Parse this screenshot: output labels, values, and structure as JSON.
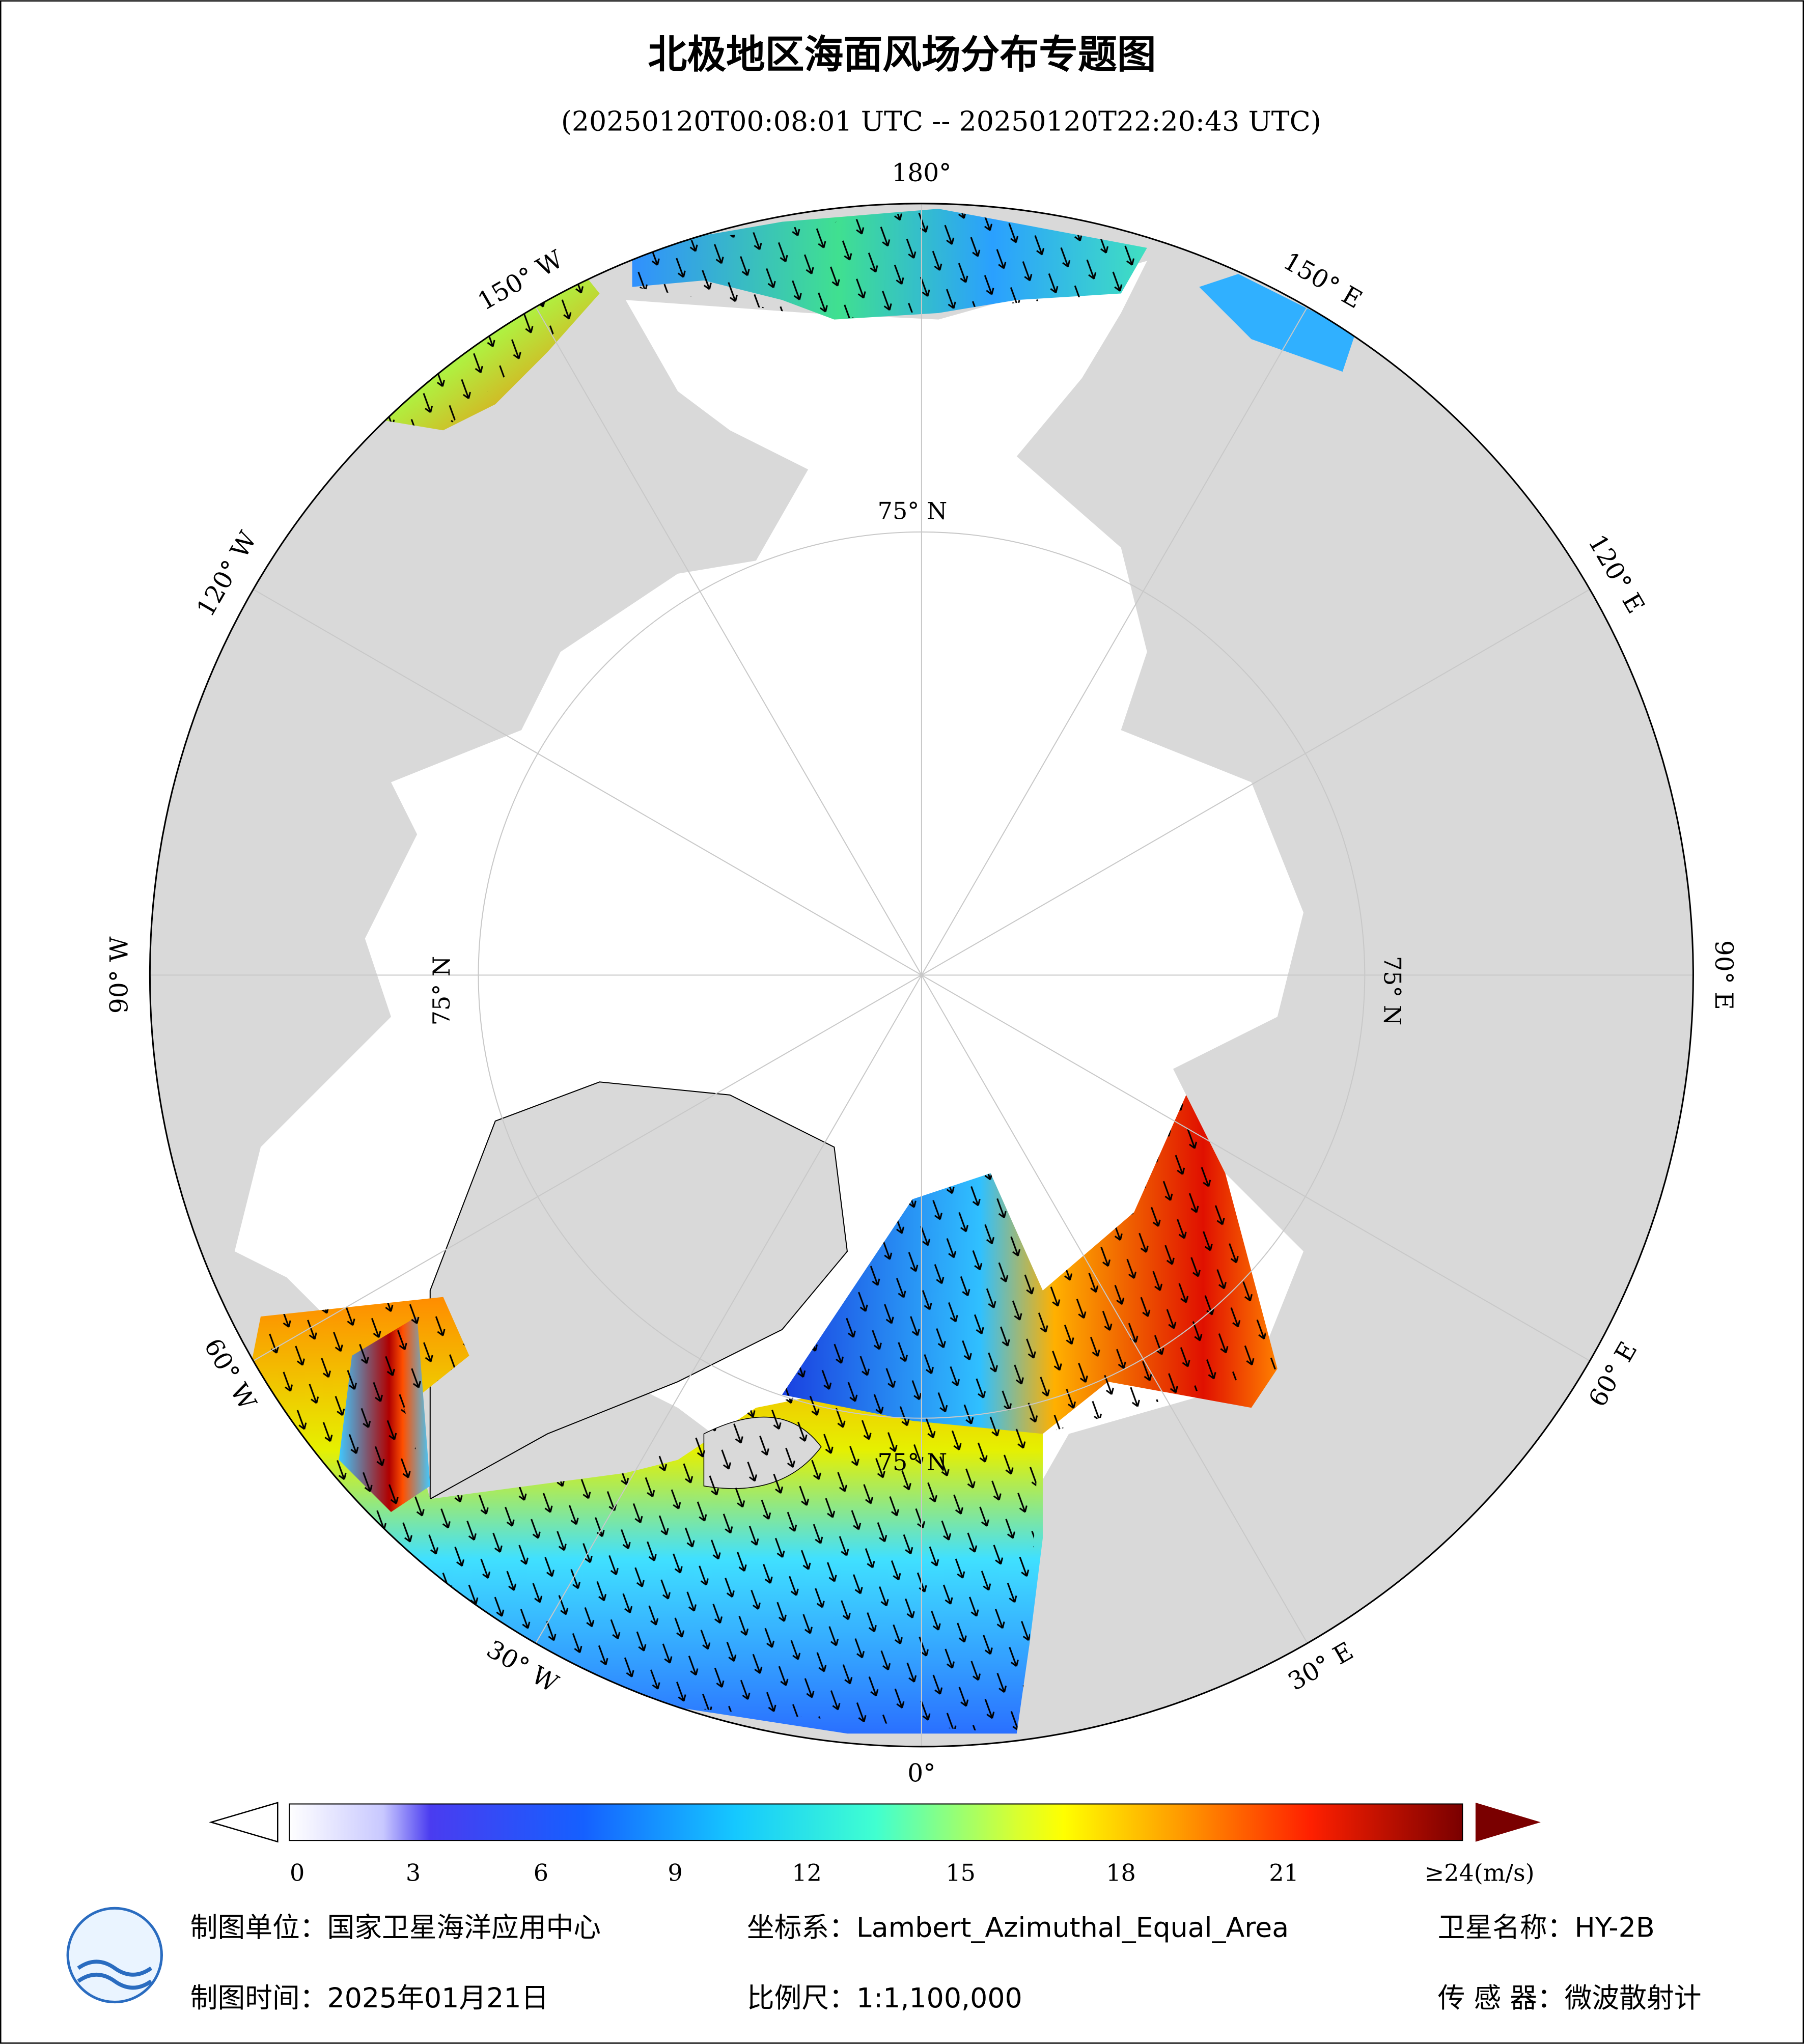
{
  "header": {
    "title": "北极地区海面风场分布专题图",
    "subtitle": "(20250120T00:08:01 UTC -- 20250120T22:20:43 UTC)"
  },
  "map": {
    "lon_labels": [
      "0°",
      "30° E",
      "60° E",
      "90° E",
      "120° E",
      "150° E",
      "180°",
      "150° W",
      "120° W",
      "90° W",
      "60° W",
      "30° W"
    ],
    "lat_label": "75° N"
  },
  "colorbar": {
    "ticks": [
      0,
      3,
      6,
      9,
      12,
      15,
      18,
      21,
      {
        "value": 24,
        "label": "≥24(m/s)"
      }
    ]
  },
  "footer": {
    "unit": "制图单位：国家卫星海洋应用中心",
    "crs": "坐标系：Lambert_Azimuthal_Equal_Area",
    "satellite": "卫星名称：HY-2B",
    "date": "制图时间：2025年01月21日",
    "scale": "比例尺：1:1,100,000",
    "sensor": "传 感 器：微波散射计"
  }
}
